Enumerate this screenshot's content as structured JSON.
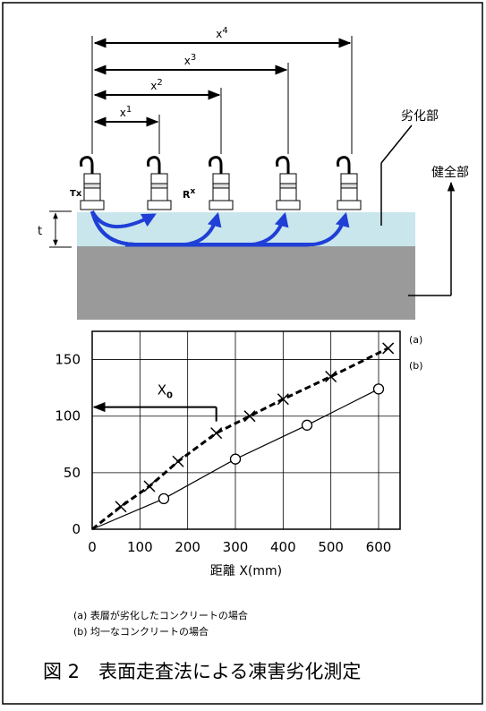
{
  "diagram": {
    "dimensions": [
      {
        "text": "x",
        "sup": "4"
      },
      {
        "text": "x",
        "sup": "3"
      },
      {
        "text": "x",
        "sup": "2"
      },
      {
        "text": "x",
        "sup": "1"
      }
    ],
    "tx": "Tx",
    "rx": {
      "text": "R",
      "sup": "x"
    },
    "thickness": "t",
    "degraded": "劣化部",
    "sound": "健全部"
  },
  "chart_data": {
    "type": "scatter",
    "xlabel": "距離 X(mm)",
    "xlim": [
      0,
      645
    ],
    "ylim": [
      0,
      175
    ],
    "xticks": [
      0,
      100,
      200,
      300,
      400,
      500,
      600
    ],
    "yticks": [
      0,
      50,
      100,
      150
    ],
    "grid": true,
    "series": [
      {
        "name": "(a)",
        "color": "#000000",
        "marker": "x",
        "line_style": "dashed",
        "x": [
          60,
          120,
          180,
          260,
          330,
          400,
          500,
          620
        ],
        "values": [
          20,
          38,
          60,
          85,
          100,
          115,
          135,
          160
        ]
      },
      {
        "name": "(b)",
        "color": "#000000",
        "marker": "o",
        "line_style": "solid",
        "x": [
          150,
          300,
          450,
          600
        ],
        "values": [
          27,
          62,
          92,
          124
        ]
      }
    ],
    "annotation": {
      "text": "X",
      "sub": "0",
      "x": 260,
      "y": 108
    }
  },
  "notes": [
    "(a)  表層が劣化したコンクリートの場合",
    "(b)  均一なコンクリートの場合"
  ],
  "caption": "図 2　表面走査法による凍害劣化測定"
}
